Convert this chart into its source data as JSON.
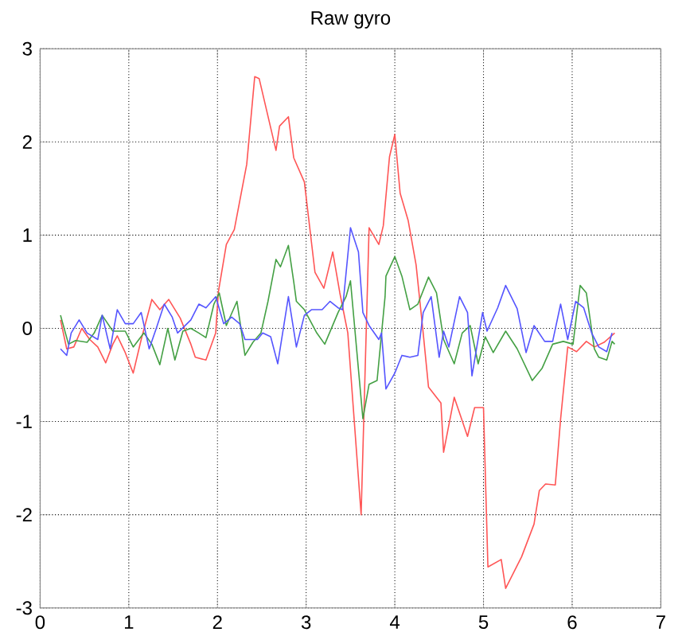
{
  "chart_data": {
    "type": "line",
    "title": "Raw gyro",
    "xlim": [
      0,
      7
    ],
    "ylim": [
      -3,
      3
    ],
    "xticks": [
      0,
      1,
      2,
      3,
      4,
      5,
      6,
      7
    ],
    "yticks": [
      -3,
      -2,
      -1,
      0,
      1,
      2,
      3
    ],
    "grid": true,
    "marker": "none",
    "line_style": "solid",
    "series": [
      {
        "color": "#ff5555",
        "x": [
          0.23,
          0.3,
          0.38,
          0.47,
          0.56,
          0.65,
          0.74,
          0.82,
          0.87,
          0.96,
          1.05,
          1.14,
          1.26,
          1.35,
          1.45,
          1.58,
          1.7,
          1.75,
          1.87,
          1.98,
          2.01,
          2.1,
          2.19,
          2.33,
          2.42,
          2.47,
          2.66,
          2.7,
          2.8,
          2.86,
          2.98,
          3.1,
          3.2,
          3.3,
          3.38,
          3.47,
          3.62,
          3.71,
          3.82,
          3.87,
          3.94,
          4.0,
          4.06,
          4.15,
          4.24,
          4.32,
          4.38,
          4.52,
          4.55,
          4.67,
          4.82,
          4.9,
          5.0,
          5.05,
          5.2,
          5.25,
          5.43,
          5.57,
          5.63,
          5.7,
          5.81,
          5.87,
          5.95,
          6.05,
          6.16,
          6.25,
          6.36,
          6.48
        ],
        "values": [
          0.09,
          -0.22,
          -0.2,
          0.0,
          -0.12,
          -0.2,
          -0.37,
          -0.17,
          -0.08,
          -0.26,
          -0.48,
          -0.12,
          0.31,
          0.2,
          0.31,
          0.11,
          -0.17,
          -0.31,
          -0.34,
          -0.05,
          0.39,
          0.9,
          1.06,
          1.76,
          2.7,
          2.68,
          1.91,
          2.17,
          2.27,
          1.83,
          1.57,
          0.6,
          0.43,
          0.82,
          0.38,
          -0.05,
          -2.0,
          1.08,
          0.9,
          1.1,
          1.84,
          2.08,
          1.45,
          1.16,
          0.68,
          -0.05,
          -0.63,
          -0.8,
          -1.33,
          -0.74,
          -1.16,
          -0.85,
          -0.85,
          -2.56,
          -2.48,
          -2.79,
          -2.45,
          -2.1,
          -1.74,
          -1.67,
          -1.68,
          -0.97,
          -0.2,
          -0.25,
          -0.14,
          -0.2,
          -0.15,
          -0.05
        ]
      },
      {
        "color": "#44a044",
        "x": [
          0.23,
          0.32,
          0.4,
          0.53,
          0.61,
          0.7,
          0.82,
          0.96,
          1.05,
          1.17,
          1.26,
          1.35,
          1.44,
          1.52,
          1.61,
          1.7,
          1.79,
          1.87,
          1.96,
          2.02,
          2.1,
          2.22,
          2.31,
          2.4,
          2.49,
          2.57,
          2.66,
          2.71,
          2.8,
          2.86,
          2.89,
          2.98,
          3.12,
          3.21,
          3.36,
          3.45,
          3.5,
          3.64,
          3.71,
          3.8,
          3.89,
          3.9,
          4.0,
          4.08,
          4.17,
          4.26,
          4.38,
          4.47,
          4.55,
          4.67,
          4.76,
          4.85,
          4.94,
          5.02,
          5.11,
          5.25,
          5.38,
          5.55,
          5.66,
          5.78,
          5.9,
          6.01,
          6.09,
          6.16,
          6.25,
          6.3,
          6.39,
          6.45,
          6.48
        ],
        "values": [
          0.14,
          -0.17,
          -0.13,
          -0.15,
          -0.05,
          0.14,
          -0.03,
          -0.03,
          -0.2,
          -0.05,
          -0.17,
          -0.39,
          0.0,
          -0.34,
          -0.03,
          0.0,
          -0.05,
          -0.1,
          0.26,
          0.38,
          0.03,
          0.29,
          -0.29,
          -0.15,
          -0.05,
          0.29,
          0.74,
          0.66,
          0.89,
          0.5,
          0.29,
          0.2,
          -0.05,
          -0.17,
          0.17,
          0.34,
          0.51,
          -0.97,
          -0.6,
          -0.56,
          0.34,
          0.56,
          0.77,
          0.56,
          0.2,
          0.26,
          0.55,
          0.38,
          -0.12,
          -0.38,
          -0.05,
          0.03,
          -0.38,
          -0.09,
          -0.26,
          -0.03,
          -0.22,
          -0.56,
          -0.43,
          -0.17,
          -0.14,
          -0.17,
          0.46,
          0.38,
          -0.22,
          -0.31,
          -0.34,
          -0.14,
          -0.17
        ]
      },
      {
        "color": "#5555ff",
        "x": [
          0.23,
          0.3,
          0.35,
          0.44,
          0.53,
          0.65,
          0.7,
          0.79,
          0.87,
          0.96,
          1.05,
          1.14,
          1.23,
          1.31,
          1.4,
          1.49,
          1.55,
          1.7,
          1.79,
          1.87,
          1.98,
          2.07,
          2.16,
          2.25,
          2.31,
          2.45,
          2.51,
          2.6,
          2.68,
          2.8,
          2.89,
          2.98,
          3.06,
          3.18,
          3.27,
          3.36,
          3.41,
          3.5,
          3.59,
          3.64,
          3.71,
          3.82,
          3.85,
          3.9,
          4.0,
          4.08,
          4.17,
          4.26,
          4.32,
          4.41,
          4.5,
          4.55,
          4.61,
          4.73,
          4.82,
          4.87,
          4.99,
          5.04,
          5.16,
          5.25,
          5.38,
          5.48,
          5.57,
          5.69,
          5.78,
          5.87,
          5.95,
          6.04,
          6.13,
          6.22,
          6.3,
          6.39,
          6.45
        ],
        "values": [
          -0.22,
          -0.29,
          -0.05,
          0.09,
          -0.05,
          -0.12,
          0.14,
          -0.22,
          0.2,
          0.05,
          0.05,
          0.17,
          -0.22,
          0.0,
          0.26,
          0.12,
          -0.05,
          0.09,
          0.26,
          0.22,
          0.34,
          0.05,
          0.12,
          0.05,
          -0.12,
          -0.12,
          -0.05,
          -0.09,
          -0.38,
          0.34,
          -0.2,
          0.14,
          0.2,
          0.2,
          0.29,
          0.22,
          0.2,
          1.08,
          0.82,
          0.17,
          0.03,
          -0.12,
          -0.05,
          -0.65,
          -0.48,
          -0.29,
          -0.31,
          -0.29,
          0.17,
          0.34,
          -0.31,
          -0.03,
          -0.2,
          0.34,
          0.17,
          -0.51,
          0.17,
          -0.03,
          0.22,
          0.46,
          0.21,
          -0.26,
          0.03,
          -0.14,
          -0.14,
          0.26,
          -0.12,
          0.29,
          0.22,
          -0.05,
          -0.2,
          -0.25,
          -0.05
        ]
      }
    ]
  }
}
